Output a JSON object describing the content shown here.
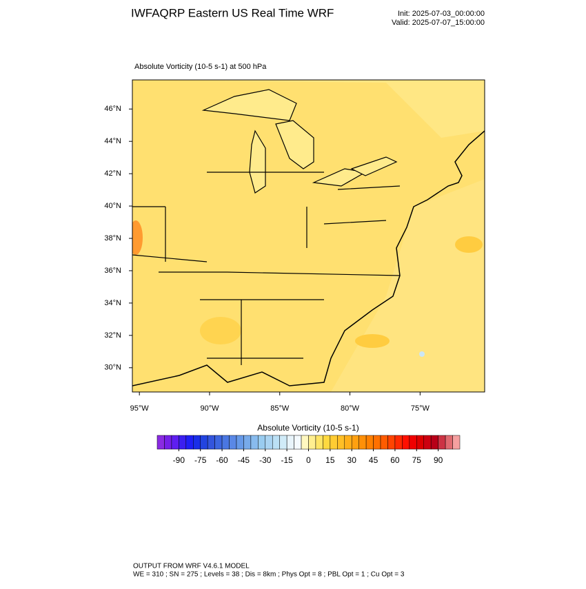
{
  "header": {
    "title": "IWFAQRP Eastern US Real Time WRF",
    "init": "Init: 2025-07-03_00:00:00",
    "valid": "Valid: 2025-07-07_15:00:00"
  },
  "plot": {
    "subtitle": "Absolute Vorticity   (10-5 s-1)     at   500 hPa",
    "lat_lim": [
      28.5,
      47.8
    ],
    "lon_lim": [
      -95.5,
      -70.4
    ],
    "lat_ticks": [
      {
        "value": 46,
        "label": "46°N"
      },
      {
        "value": 44,
        "label": "44°N"
      },
      {
        "value": 42,
        "label": "42°N"
      },
      {
        "value": 40,
        "label": "40°N"
      },
      {
        "value": 38,
        "label": "38°N"
      },
      {
        "value": 36,
        "label": "36°N"
      },
      {
        "value": 34,
        "label": "34°N"
      },
      {
        "value": 32,
        "label": "32°N"
      },
      {
        "value": 30,
        "label": "30°N"
      }
    ],
    "lon_ticks": [
      {
        "value": -95,
        "label": "95°W"
      },
      {
        "value": -90,
        "label": "90°W"
      },
      {
        "value": -85,
        "label": "85°W"
      },
      {
        "value": -80,
        "label": "80°W"
      },
      {
        "value": -75,
        "label": "75°W"
      }
    ]
  },
  "colorbar": {
    "title": "Absolute Vorticity  (10-5 s-1)",
    "range": [
      -105,
      105
    ],
    "ticks": [
      -90,
      -75,
      -60,
      -45,
      -30,
      -15,
      0,
      15,
      30,
      45,
      60,
      75,
      90
    ],
    "colors": [
      "#8a2be2",
      "#7520e8",
      "#5e1ef0",
      "#3b1ff0",
      "#1f1ff5",
      "#1a2ee8",
      "#2244e0",
      "#3355dd",
      "#3d66e0",
      "#4a77e2",
      "#5a88e6",
      "#6699e8",
      "#77aaea",
      "#88bbee",
      "#99ccf0",
      "#aad4f2",
      "#bbe0f5",
      "#d0ebf8",
      "#e8f4fb",
      "#f4faff",
      "#fff8c0",
      "#ffef90",
      "#ffe566",
      "#ffd940",
      "#ffcc33",
      "#ffbf26",
      "#ffb01a",
      "#ffa010",
      "#ff9008",
      "#ff8000",
      "#ff7000",
      "#ff5c00",
      "#ff4400",
      "#ff2a00",
      "#ff1000",
      "#f00000",
      "#dd0000",
      "#cc0010",
      "#b80018",
      "#cc3344",
      "#e06a70",
      "#f5a0a0"
    ]
  },
  "footer": {
    "line1": "OUTPUT FROM WRF V4.6.1 MODEL",
    "line2": "WE = 310 ; SN = 275 ; Levels = 38 ; Dis = 8km ; Phys Opt = 8 ; PBL Opt = 1 ; Cu Opt = 3"
  }
}
